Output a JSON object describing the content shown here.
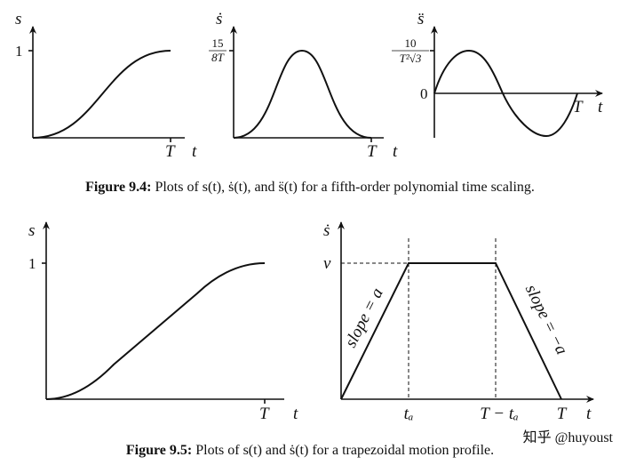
{
  "figure_9_4": {
    "plots": [
      {
        "y_label": "s",
        "y_tick": "1",
        "x_tick": "T",
        "x_label": "t"
      },
      {
        "y_label": "ṡ",
        "y_tick_numerator": "15",
        "y_tick_denominator": "8T",
        "x_tick": "T",
        "x_label": "t"
      },
      {
        "y_label": "s̈",
        "y_tick_numerator": "10",
        "y_tick_denominator": "T²√3",
        "zero_label": "0",
        "x_tick": "T",
        "x_label": "t"
      }
    ],
    "caption_label": "Figure 9.4:",
    "caption": "Plots of s(t), ṡ(t), and s̈(t) for a fifth-order polynomial time scaling."
  },
  "figure_9_5": {
    "plots": [
      {
        "y_label": "s",
        "y_tick": "1",
        "x_tick": "T",
        "x_label": "t"
      },
      {
        "y_label": "ṡ",
        "y_tick": "v",
        "x_ticks": [
          "tₐ",
          "T − tₐ",
          "T"
        ],
        "x_label": "t",
        "left_slope": "slope = a",
        "right_slope": "slope = −a"
      }
    ],
    "caption_label": "Figure 9.5:",
    "caption": "Plots of s(t) and ṡ(t) for a trapezoidal motion profile."
  },
  "watermark": "知乎 @huyoust"
}
